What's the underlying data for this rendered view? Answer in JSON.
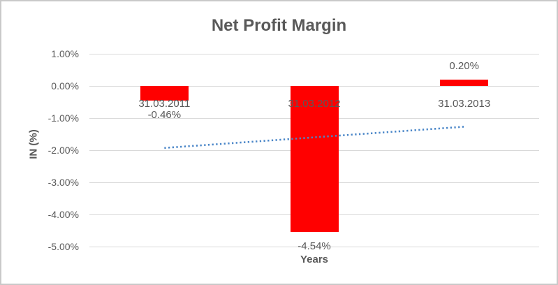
{
  "chart_data": {
    "type": "bar",
    "title": "Net Profit Margin",
    "xlabel": "Years",
    "ylabel": "IN (%)",
    "categories": [
      "31.03.2011",
      "31.03.2012",
      "31.03.2013"
    ],
    "values": [
      -0.46,
      -4.54,
      0.2
    ],
    "data_labels": [
      "-0.46%",
      "-4.54%",
      "0.20%"
    ],
    "ylim": [
      -5,
      1
    ],
    "yticks": [
      {
        "label": "1.00%",
        "value": 1
      },
      {
        "label": "0.00%",
        "value": 0
      },
      {
        "label": "-1.00%",
        "value": -1
      },
      {
        "label": "-2.00%",
        "value": -2
      },
      {
        "label": "-3.00%",
        "value": -3
      },
      {
        "label": "-4.00%",
        "value": -4
      },
      {
        "label": "-5.00%",
        "value": -5
      }
    ],
    "grid": "horizontal",
    "legend": "none",
    "bar_color": "#ff0000",
    "trendline": {
      "type": "linear",
      "style": "dotted",
      "color": "#4a86c8",
      "start_value": -1.93,
      "end_value": -1.27
    },
    "colors": {
      "text": "#595959",
      "gridline": "#d9d9d9",
      "border": "#c9c9c9",
      "background": "#ffffff"
    }
  }
}
